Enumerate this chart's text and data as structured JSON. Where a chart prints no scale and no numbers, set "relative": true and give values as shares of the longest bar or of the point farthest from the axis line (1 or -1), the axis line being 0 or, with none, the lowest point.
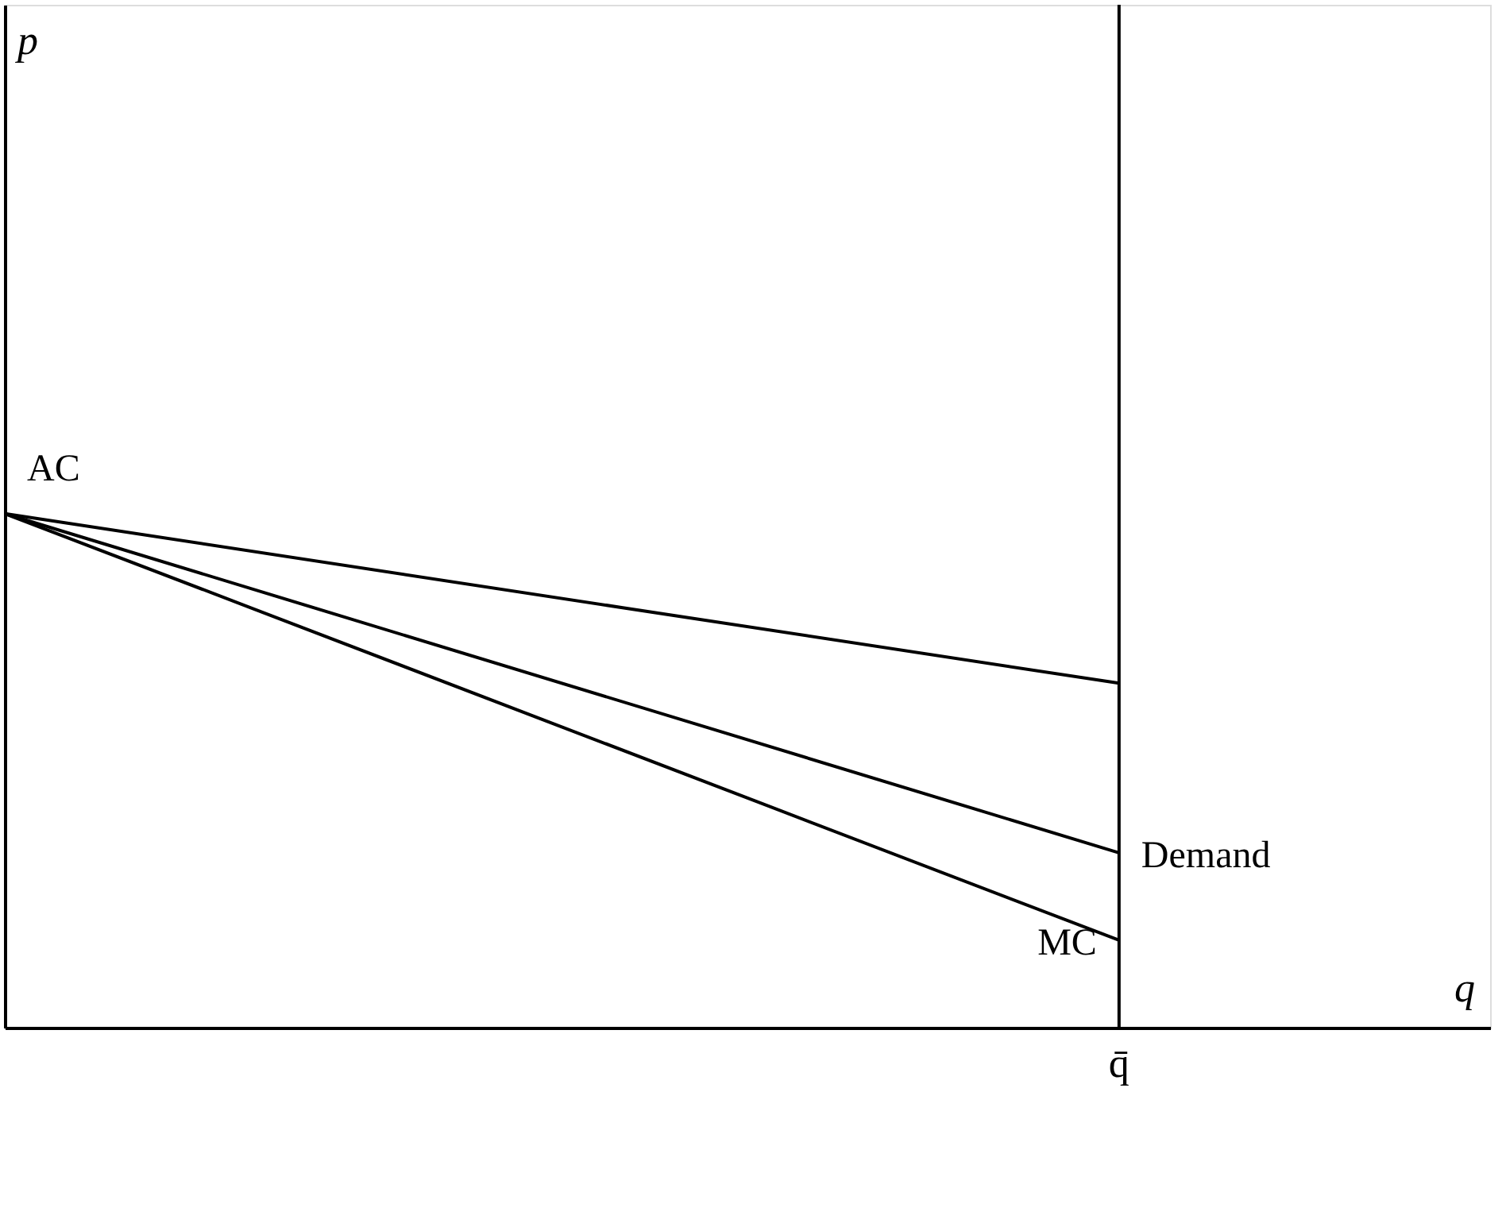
{
  "chart_data": {
    "type": "line",
    "relative": true,
    "xlabel": "q",
    "annotations": [
      "q̄",
      "p"
    ],
    "categories": [
      null,
      null
    ],
    "series": [
      {
        "name": "AC",
        "color": "#000000",
        "values": [
          1,
          0.67
        ]
      },
      {
        "name": "Demand",
        "color": "#000000",
        "values": [
          1,
          0.34
        ]
      },
      {
        "name": "MC",
        "color": "#000000",
        "values": [
          1,
          0.17
        ]
      }
    ],
    "grid": false,
    "legend": false,
    "marker": "none",
    "line_style": "solid"
  }
}
